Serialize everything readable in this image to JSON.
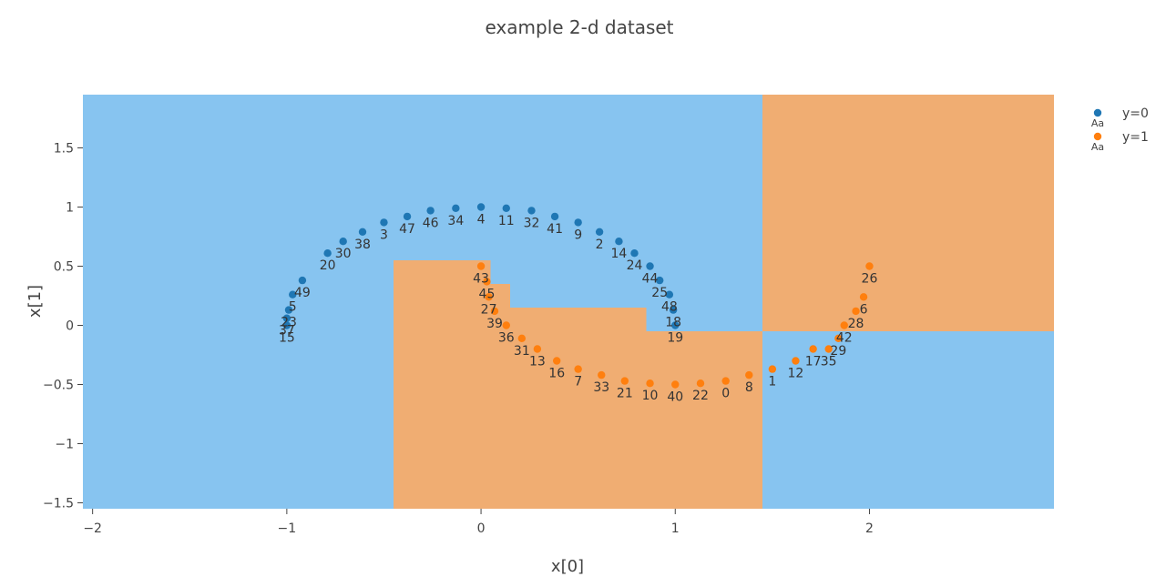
{
  "chart_data": {
    "type": "scatter",
    "title": "example 2-d dataset",
    "xlabel": "x[0]",
    "ylabel": "x[1]",
    "xlim": [
      -2.05,
      2.95
    ],
    "ylim": [
      -1.55,
      1.95
    ],
    "xticks": [
      {
        "value": -2,
        "label": "−2"
      },
      {
        "value": -1,
        "label": "−1"
      },
      {
        "value": 0,
        "label": "0"
      },
      {
        "value": 1,
        "label": "1"
      },
      {
        "value": 2,
        "label": "2"
      }
    ],
    "yticks": [
      {
        "value": -1.5,
        "label": "−1.5"
      },
      {
        "value": -1,
        "label": "−1"
      },
      {
        "value": -0.5,
        "label": "−0.5"
      },
      {
        "value": 0,
        "label": "0"
      },
      {
        "value": 0.5,
        "label": "0.5"
      },
      {
        "value": 1,
        "label": "1"
      },
      {
        "value": 1.5,
        "label": "1.5"
      }
    ],
    "grid": false,
    "legend_position": "top-right",
    "legend_symbol_text": "Aa",
    "colors": {
      "class0_point": "#1f77b4",
      "class1_point": "#ff7f0e",
      "class0_region": "#87c4f0",
      "class1_region": "#f0ad72"
    },
    "decision_regions": [
      {
        "class": 1,
        "x": [
          1.45,
          2.95
        ],
        "y": [
          -0.05,
          1.95
        ]
      },
      {
        "class": 1,
        "x": [
          -0.45,
          1.45
        ],
        "y": [
          -1.55,
          -0.05
        ]
      },
      {
        "class": 1,
        "x": [
          -0.45,
          0.85
        ],
        "y": [
          -0.05,
          0.15
        ]
      },
      {
        "class": 1,
        "x": [
          -0.45,
          0.15
        ],
        "y": [
          0.15,
          0.35
        ]
      },
      {
        "class": 1,
        "x": [
          -0.45,
          0.05
        ],
        "y": [
          0.35,
          0.55
        ]
      }
    ],
    "series": [
      {
        "name": "y=0",
        "class": 0,
        "points": [
          {
            "id": "2",
            "x": 0.61,
            "y": 0.79
          },
          {
            "id": "3",
            "x": -0.5,
            "y": 0.87
          },
          {
            "id": "4",
            "x": 0.0,
            "y": 1.0
          },
          {
            "id": "5",
            "x": -0.97,
            "y": 0.26
          },
          {
            "id": "9",
            "x": 0.5,
            "y": 0.87
          },
          {
            "id": "11",
            "x": 0.13,
            "y": 0.99
          },
          {
            "id": "14",
            "x": 0.71,
            "y": 0.71
          },
          {
            "id": "15",
            "x": -1.0,
            "y": 0.0
          },
          {
            "id": "18",
            "x": 0.99,
            "y": 0.13
          },
          {
            "id": "19",
            "x": 1.0,
            "y": 0.0
          },
          {
            "id": "20",
            "x": -0.79,
            "y": 0.61
          },
          {
            "id": "23",
            "x": -0.99,
            "y": 0.13
          },
          {
            "id": "24",
            "x": 0.79,
            "y": 0.61
          },
          {
            "id": "25",
            "x": 0.92,
            "y": 0.38
          },
          {
            "id": "30",
            "x": -0.71,
            "y": 0.71
          },
          {
            "id": "32",
            "x": 0.26,
            "y": 0.97
          },
          {
            "id": "34",
            "x": -0.13,
            "y": 0.99
          },
          {
            "id": "37",
            "x": -1.0,
            "y": 0.06
          },
          {
            "id": "38",
            "x": -0.61,
            "y": 0.79
          },
          {
            "id": "41",
            "x": 0.38,
            "y": 0.92
          },
          {
            "id": "44",
            "x": 0.87,
            "y": 0.5
          },
          {
            "id": "46",
            "x": -0.26,
            "y": 0.97
          },
          {
            "id": "47",
            "x": -0.38,
            "y": 0.92
          },
          {
            "id": "48",
            "x": 0.97,
            "y": 0.26
          },
          {
            "id": "49",
            "x": -0.92,
            "y": 0.38
          }
        ]
      },
      {
        "name": "y=1",
        "class": 1,
        "points": [
          {
            "id": "0",
            "x": 1.26,
            "y": -0.47
          },
          {
            "id": "1",
            "x": 1.5,
            "y": -0.37
          },
          {
            "id": "6",
            "x": 1.97,
            "y": 0.24
          },
          {
            "id": "7",
            "x": 0.5,
            "y": -0.37
          },
          {
            "id": "8",
            "x": 1.38,
            "y": -0.42
          },
          {
            "id": "10",
            "x": 0.87,
            "y": -0.49
          },
          {
            "id": "12",
            "x": 1.62,
            "y": -0.3
          },
          {
            "id": "13",
            "x": 0.29,
            "y": -0.2
          },
          {
            "id": "16",
            "x": 0.39,
            "y": -0.3
          },
          {
            "id": "17",
            "x": 1.71,
            "y": -0.2
          },
          {
            "id": "21",
            "x": 0.74,
            "y": -0.47
          },
          {
            "id": "22",
            "x": 1.13,
            "y": -0.49
          },
          {
            "id": "26",
            "x": 2.0,
            "y": 0.5
          },
          {
            "id": "27",
            "x": 0.04,
            "y": 0.24
          },
          {
            "id": "28",
            "x": 1.93,
            "y": 0.12
          },
          {
            "id": "29",
            "x": 1.84,
            "y": -0.11
          },
          {
            "id": "31",
            "x": 0.21,
            "y": -0.11
          },
          {
            "id": "33",
            "x": 0.62,
            "y": -0.42
          },
          {
            "id": "35",
            "x": 1.79,
            "y": -0.2
          },
          {
            "id": "36",
            "x": 0.13,
            "y": 0.0
          },
          {
            "id": "39",
            "x": 0.07,
            "y": 0.12
          },
          {
            "id": "40",
            "x": 1.0,
            "y": -0.5
          },
          {
            "id": "42",
            "x": 1.87,
            "y": 0.0
          },
          {
            "id": "43",
            "x": 0.0,
            "y": 0.5
          },
          {
            "id": "45",
            "x": 0.03,
            "y": 0.37
          }
        ]
      }
    ]
  }
}
